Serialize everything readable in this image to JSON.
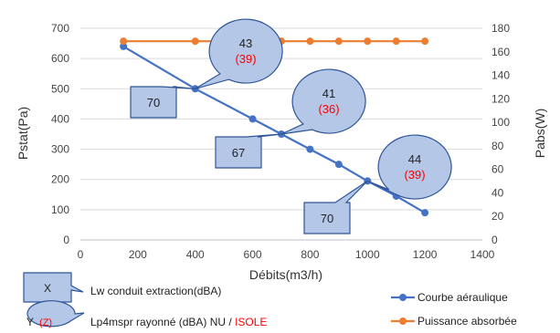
{
  "chart_data": {
    "type": "line",
    "xlabel": "Débits(m3/h)",
    "ylabel_left": "Pstat(Pa)",
    "ylabel_right": "Pabs(W)",
    "xlim": [
      0,
      1400
    ],
    "x_ticks": [
      0,
      200,
      400,
      600,
      800,
      1000,
      1200,
      1400
    ],
    "ylim_left": [
      0,
      700
    ],
    "y_ticks_left": [
      0,
      100,
      200,
      300,
      400,
      500,
      600,
      700
    ],
    "ylim_right": [
      0,
      180
    ],
    "y_ticks_right": [
      0,
      20,
      40,
      60,
      80,
      100,
      120,
      140,
      160,
      180
    ],
    "grid": true,
    "legend_position": "bottom-right",
    "series": [
      {
        "name": "Courbe aéraulique",
        "axis": "left",
        "color": "#4472c4",
        "x": [
          150,
          400,
          600,
          700,
          800,
          900,
          1000,
          1100,
          1200
        ],
        "y": [
          640,
          500,
          400,
          350,
          300,
          250,
          195,
          145,
          90
        ]
      },
      {
        "name": "Puissance absorbée",
        "axis": "right",
        "color": "#ed7d31",
        "x": [
          150,
          400,
          600,
          700,
          800,
          900,
          1000,
          1100,
          1200
        ],
        "y": [
          169,
          169,
          169,
          169,
          169,
          169,
          169,
          169,
          169
        ]
      }
    ],
    "annotations": [
      {
        "at_x": 400,
        "at_y": 500,
        "lw": "70",
        "lp": "43",
        "lp_isole": "(39)"
      },
      {
        "at_x": 700,
        "at_y": 350,
        "lw": "67",
        "lp": "41",
        "lp_isole": "(36)"
      },
      {
        "at_x": 1000,
        "at_y": 195,
        "lw": "70",
        "lp": "44",
        "lp_isole": "(39)"
      }
    ],
    "key": {
      "box_label": "X",
      "box_text": "Lw conduit extraction(dBA)",
      "oval_label": "Y",
      "oval_label_isole": "(Z)",
      "oval_text": "Lp4mspr rayonné (dBA) NU / ",
      "oval_text_isole": "ISOLE"
    },
    "colors": {
      "callout_fill": "#b4c7e7",
      "callout_stroke": "#2f5597",
      "isole_red": "#ff0000",
      "grid": "#d9d9d9"
    }
  }
}
